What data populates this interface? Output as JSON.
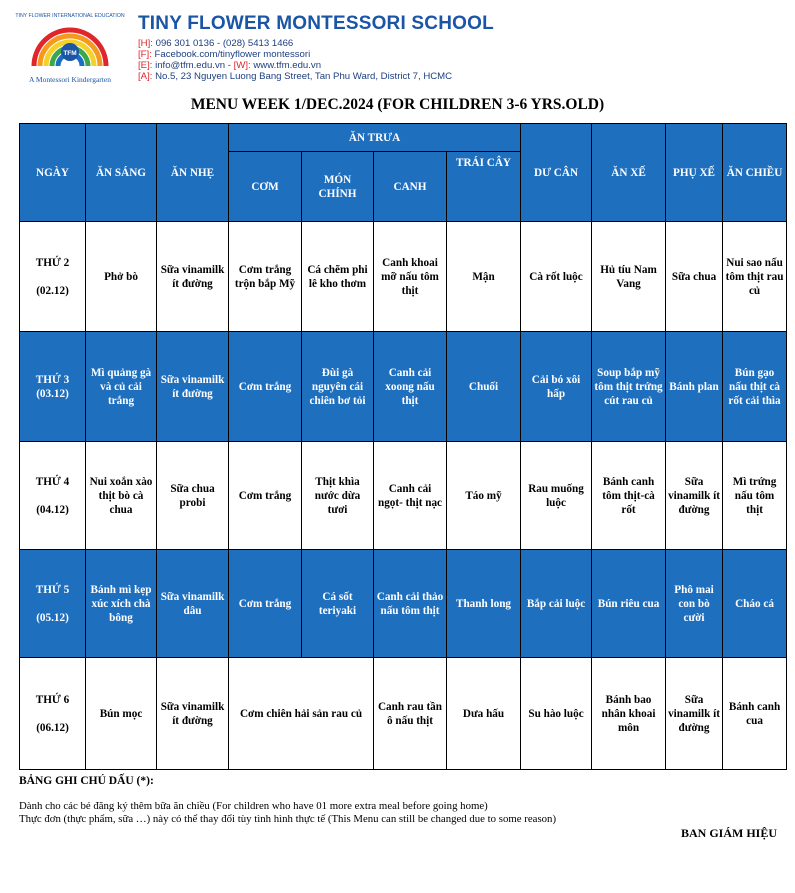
{
  "header": {
    "logo": {
      "arc_text": "TINY FLOWER INTERNATIONAL EDUCATION",
      "center_text": "TFM",
      "tagline": "A Montessori Kindergarten"
    },
    "school_name": "TINY FLOWER MONTESSORI SCHOOL",
    "contacts": [
      {
        "key": "[H]:",
        "value": "096 301 0136 - (028) 5413 1466"
      },
      {
        "key": "[F]:",
        "value": "Facebook.com/tinyflower montessori"
      },
      {
        "key": "[E]:",
        "value": "info@tfm.edu.vn - ",
        "key2": "[W]:",
        "value2": "www.tfm.edu.vn"
      },
      {
        "key": "[A]:",
        "value": "No.5, 23 Nguyen Luong Bang Street, Tan Phu Ward, District 7, HCMC"
      }
    ]
  },
  "title": "MENU WEEK 1/DEC.2024 (FOR CHILDREN 3-6 YRS.OLD)",
  "table": {
    "headers": {
      "day": "NGÀY",
      "breakfast": "ĂN SÁNG",
      "snack": "ĂN NHẸ",
      "lunch_group": "ĂN TRƯA",
      "rice": "CƠM",
      "main": "MÓN CHÍNH",
      "soup": "CANH",
      "fruit": "TRÁI CÂY",
      "extra": "DƯ CÂN",
      "afternoon": "ĂN XẾ",
      "after_side": "PHỤ XẾ",
      "dinner": "ĂN CHIỀU"
    },
    "rows": [
      {
        "day": "THỨ 2",
        "date": "(02.12)",
        "breakfast": "Phở bò",
        "snack": "Sữa vinamilk ít đường",
        "rice": "Cơm trắng trộn bắp Mỹ",
        "main": "Cá chẽm phi lê kho thơm",
        "soup": "Canh khoai mỡ nấu tôm thịt",
        "fruit": "Mận",
        "extra": "Cà rốt luộc",
        "afternoon": "Hủ tíu Nam Vang",
        "after_side": "Sữa chua",
        "dinner": "Nui sao nấu tôm thịt rau củ"
      },
      {
        "day": "THỨ 3",
        "date": "(03.12)",
        "breakfast": "Mì quảng gà và củ cải trắng",
        "snack": "Sữa vinamilk ít đường",
        "rice": "Cơm trắng",
        "main": "Đùi gà nguyên cái chiên bơ tỏi",
        "soup": "Canh cải xoong nấu thịt",
        "fruit": "Chuối",
        "extra": "Cải bó xôi hấp",
        "afternoon": "Soup bắp mỹ tôm thịt trứng cút rau củ",
        "after_side": "Bánh plan",
        "dinner": "Bún gạo nấu thịt cà rốt cải thìa"
      },
      {
        "day": "THỨ 4",
        "date": "(04.12)",
        "breakfast": "Nui xoắn xào thịt bò cà chua",
        "snack": "Sữa chua probi",
        "rice": "Cơm trắng",
        "main": "Thịt khìa nước dừa tươi",
        "soup": "Canh cải ngọt- thịt nạc",
        "fruit": "Táo mỹ",
        "extra": "Rau muống luộc",
        "afternoon": "Bánh canh tôm thịt-cà rốt",
        "after_side": "Sữa vinamilk ít đường",
        "dinner": "Mì trứng nấu tôm thịt"
      },
      {
        "day": "THỨ 5",
        "date": "(05.12)",
        "breakfast": "Bánh mì kẹp xúc xích chà bông",
        "snack": "Sữa vinamilk dâu",
        "rice": "Cơm trắng",
        "main": "Cá sốt teriyaki",
        "soup": "Canh cải thảo nấu tôm thịt",
        "fruit": "Thanh long",
        "extra": "Bắp cải luộc",
        "afternoon": "Bún riêu cua",
        "after_side": "Phô mai con bò cười",
        "dinner": "Cháo cá"
      },
      {
        "day": "THỨ 6",
        "date": "(06.12)",
        "breakfast": "Bún mọc",
        "snack": "Sữa vinamilk ít đường",
        "rice_main": "Cơm chiên hải sản rau củ",
        "soup": "Canh rau tần ô nấu thịt",
        "fruit": "Dưa hấu",
        "extra": "Su hào luộc",
        "afternoon": "Bánh bao nhân khoai môn",
        "after_side": "Sữa vinamilk ít đường",
        "dinner": "Bánh canh cua"
      }
    ]
  },
  "legend": {
    "title": "BẢNG GHI CHÚ DẤU (*):",
    "line1": "Dành cho các bé  đăng ký thêm bữa ăn chiều (For children who have 01 more extra meal before going home)",
    "line2": "Thực đơn  (thực phẩm, sữa …) này có thể  thay đổi  tùy  tình  hình  thực  tế  (This Menu can still be changed due to some reason)"
  },
  "signature": "BAN GIÁM HIỆU",
  "colors": {
    "header_blue": "#1f6fbf",
    "brand_blue": "#1a55a6",
    "contact_red": "#e0252b"
  }
}
